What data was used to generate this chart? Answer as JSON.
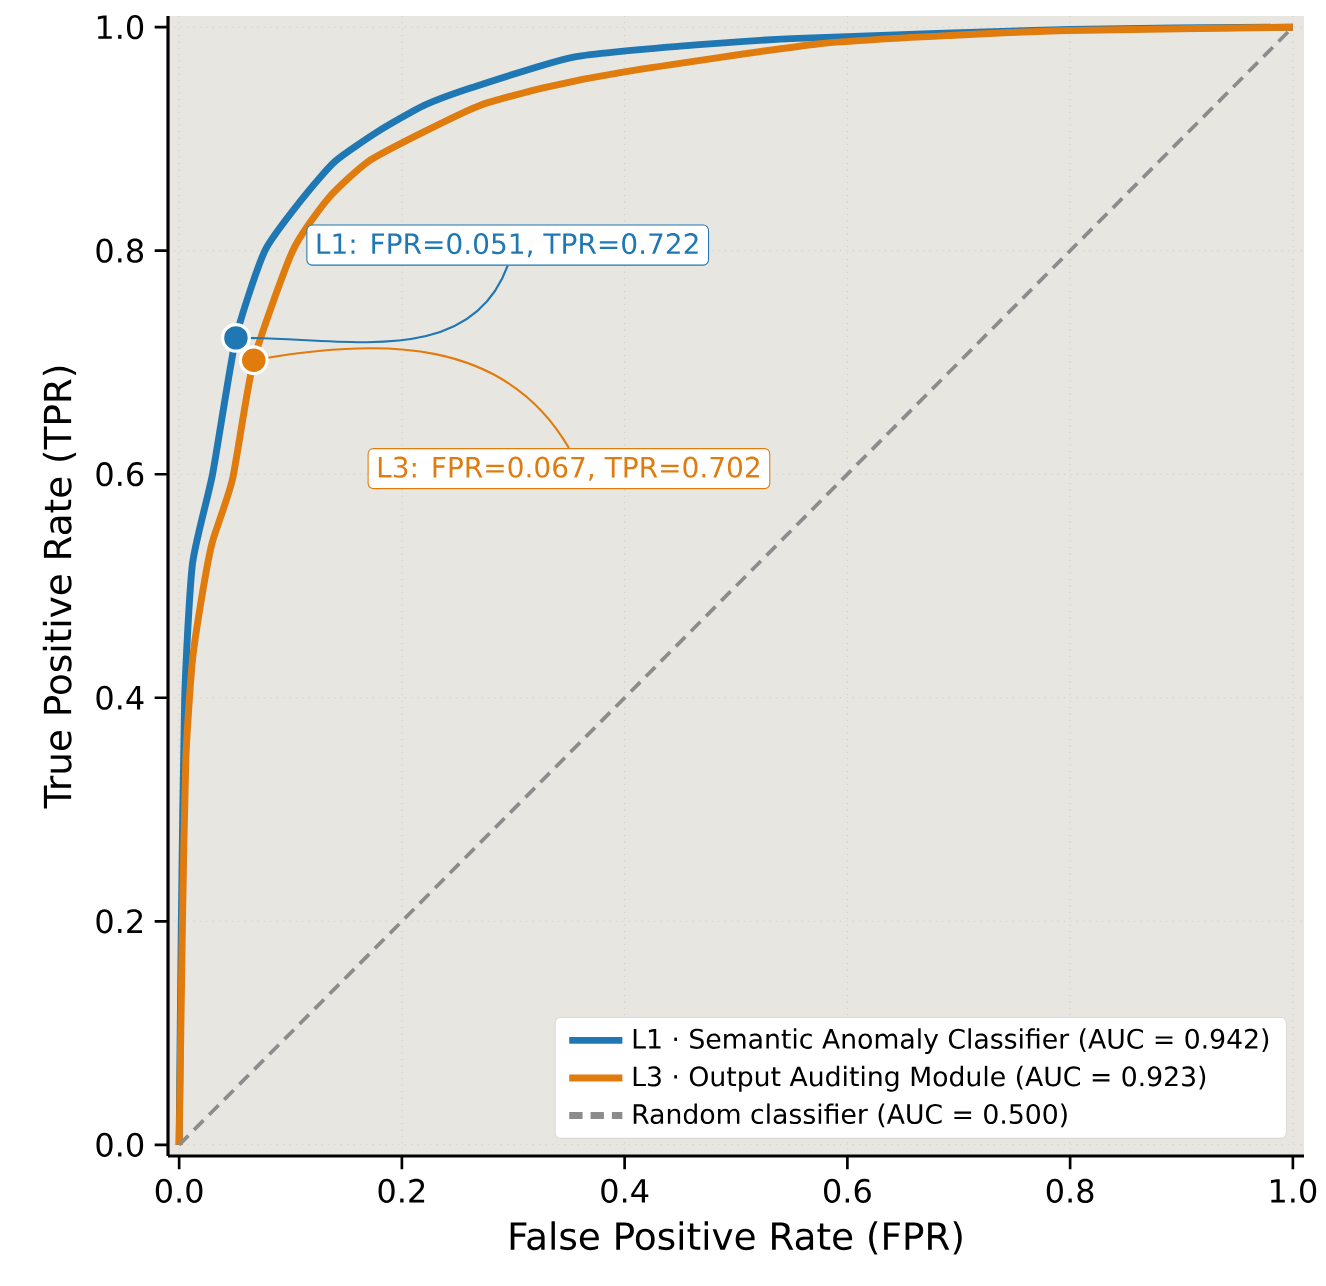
{
  "chart_data": {
    "type": "line",
    "xlabel": "False Positive Rate (FPR)",
    "ylabel": "True Positive Rate (TPR)",
    "xlim": [
      -0.01,
      1.01
    ],
    "ylim": [
      -0.01,
      1.01
    ],
    "xticks": [
      {
        "value": 0,
        "label": "0.0"
      },
      0.2,
      0.4,
      0.6,
      0.8,
      {
        "value": 1,
        "label": "1.0"
      }
    ],
    "yticks": [
      {
        "value": 0,
        "label": "0.0"
      },
      0.2,
      0.4,
      0.6,
      0.8,
      {
        "value": 1,
        "label": "1.0"
      }
    ],
    "grid": true,
    "legend": "bottom right",
    "series": [
      {
        "name": "L1 · Semantic Anomaly Classifier  (AUC = 0.942)",
        "color": "#1f77b4",
        "x": [
          0,
          0.002,
          0.005,
          0.012,
          0.03,
          0.051,
          0.077,
          0.111,
          0.14,
          0.179,
          0.22,
          0.263,
          0.353,
          0.45,
          0.556,
          0.8,
          1
        ],
        "values": [
          0,
          0.2,
          0.4,
          0.52,
          0.6,
          0.722,
          0.8,
          0.847,
          0.88,
          0.907,
          0.93,
          0.946,
          0.973,
          0.983,
          0.99,
          0.998,
          1
        ]
      },
      {
        "name": "L3 · Output Auditing Module        (AUC = 0.923)",
        "color": "#e07b0d",
        "x": [
          0,
          0.003,
          0.006,
          0.012,
          0.022,
          0.03,
          0.048,
          0.067,
          0.102,
          0.134,
          0.17,
          0.221,
          0.27,
          0.328,
          0.4,
          0.573,
          0.7,
          0.8,
          1
        ],
        "values": [
          0,
          0.2,
          0.345,
          0.434,
          0.5,
          0.54,
          0.596,
          0.702,
          0.8,
          0.847,
          0.88,
          0.907,
          0.93,
          0.946,
          0.96,
          0.985,
          0.993,
          0.997,
          1
        ]
      },
      {
        "name": "Random classifier (AUC = 0.500)",
        "color": "#8c8c8c",
        "line_style": "dashed",
        "x": [
          0,
          1
        ],
        "values": [
          0,
          1
        ]
      },
      {
        "type": "scatter",
        "color": "#1f77b4",
        "marker": "circle",
        "x": [
          0.051
        ],
        "values": [
          0.722
        ]
      },
      {
        "type": "scatter",
        "color": "#e07b0d",
        "marker": "circle",
        "x": [
          0.067
        ],
        "values": [
          0.702
        ]
      }
    ],
    "annotations": [
      {
        "text": "L1:  FPR=0.051,  TPR=0.722",
        "x": 0.051,
        "y": 0.722
      },
      {
        "text": "L3:  FPR=0.067,  TPR=0.702",
        "x": 0.067,
        "y": 0.702
      }
    ]
  }
}
